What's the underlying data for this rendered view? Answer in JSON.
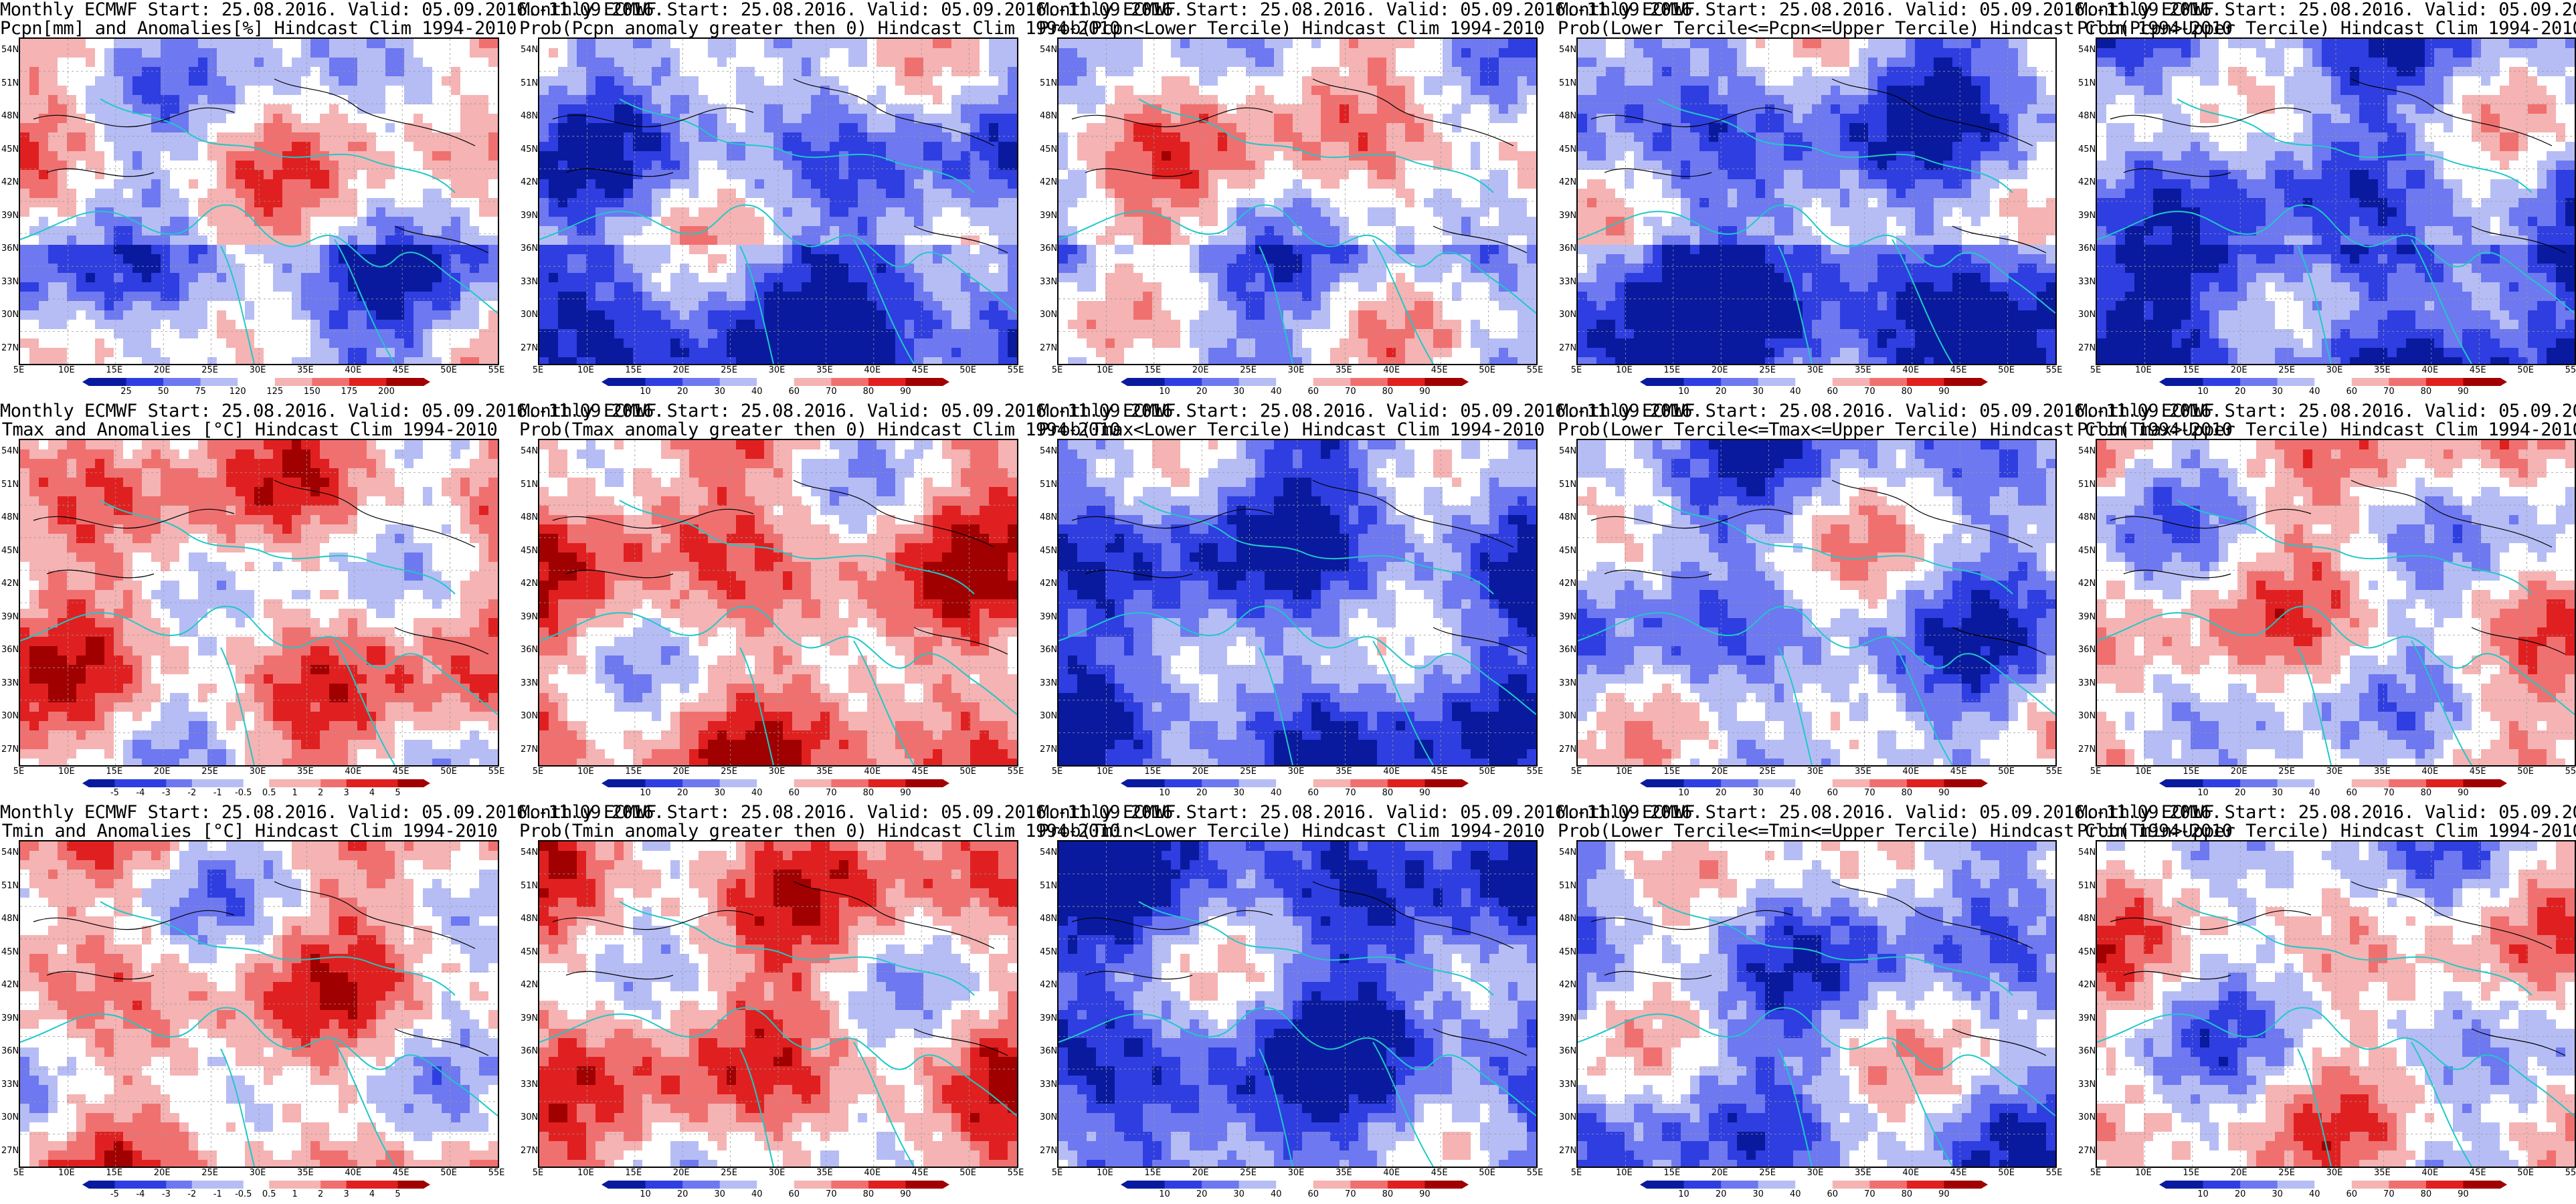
{
  "common": {
    "line1": "Monthly ECMWF Start: 25.08.2016. Valid: 05.09.2016.-11.09.2016.",
    "lat_labels": [
      "54N",
      "51N",
      "48N",
      "45N",
      "42N",
      "39N",
      "36N",
      "33N",
      "30N",
      "27N"
    ],
    "lon_labels": [
      "5E",
      "10E",
      "15E",
      "20E",
      "25E",
      "30E",
      "35E",
      "40E",
      "45E",
      "50E",
      "55E"
    ],
    "prob_ticks": [
      "10",
      "20",
      "30",
      "40",
      "60",
      "70",
      "80",
      "90"
    ],
    "colors": {
      "deep_blue": "#0a1a9e",
      "blue": "#2f3ee0",
      "mid_blue": "#6e78f0",
      "light_blue": "#b6bdf5",
      "white": "#ffffff",
      "light_red": "#f5b3b3",
      "mid_red": "#f07070",
      "red": "#e02020",
      "deep_red": "#a00000",
      "coast": "#20c8c8",
      "contour": "#000000"
    }
  },
  "rows": [
    {
      "variable": "precipitation",
      "panels": [
        {
          "title2": "Pcpn[mm] and Anomalies[%] Hindcast Clim 1994-2010",
          "ticks": [
            "25",
            "50",
            "75",
            "120",
            "125",
            "150",
            "175",
            "200"
          ],
          "bias": 0.0
        },
        {
          "title2": "Prob(Pcpn anomaly greater then 0) Hindcast Clim 1994-2010",
          "ticks": [
            "10",
            "20",
            "30",
            "40",
            "60",
            "70",
            "80",
            "90"
          ],
          "bias": -0.35
        },
        {
          "title2": "Prob(Pcpn<Lower Tercile) Hindcast Clim 1994-2010",
          "ticks": [
            "10",
            "20",
            "30",
            "40",
            "60",
            "70",
            "80",
            "90"
          ],
          "bias": 0.1
        },
        {
          "title2": "Prob(Lower Tercile<=Pcpn<=Upper Tercile) Hindcast Clim 1994-2010",
          "ticks": [
            "10",
            "20",
            "30",
            "40",
            "60",
            "70",
            "80",
            "90"
          ],
          "bias": -0.45
        },
        {
          "title2": "Prob(Pcpn>Upper Tercile) Hindcast Clim 1994-2010",
          "ticks": [
            "10",
            "20",
            "30",
            "40",
            "60",
            "70",
            "80",
            "90"
          ],
          "bias": -0.4
        }
      ]
    },
    {
      "variable": "tmax",
      "panels": [
        {
          "title2": "Tmax and Anomalies [°C] Hindcast Clim 1994-2010",
          "ticks": [
            "-5",
            "-4",
            "-3",
            "-2",
            "-1",
            "-0.5",
            "0.5",
            "1",
            "2",
            "3",
            "4",
            "5"
          ],
          "bias": 0.25
        },
        {
          "title2": "Prob(Tmax anomaly greater then 0) Hindcast Clim 1994-2010",
          "ticks": [
            "10",
            "20",
            "30",
            "40",
            "60",
            "70",
            "80",
            "90"
          ],
          "bias": 0.35
        },
        {
          "title2": "Prob(Tmax<Lower Tercile) Hindcast Clim 1994-2010",
          "ticks": [
            "10",
            "20",
            "30",
            "40",
            "60",
            "70",
            "80",
            "90"
          ],
          "bias": -0.55
        },
        {
          "title2": "Prob(Lower Tercile<=Tmax<=Upper Tercile) Hindcast Clim 1994-2010",
          "ticks": [
            "10",
            "20",
            "30",
            "40",
            "60",
            "70",
            "80",
            "90"
          ],
          "bias": -0.3
        },
        {
          "title2": "Prob(Tmax>Upper Tercile) Hindcast Clim 1994-2010",
          "ticks": [
            "10",
            "20",
            "30",
            "40",
            "60",
            "70",
            "80",
            "90"
          ],
          "bias": 0.05
        }
      ]
    },
    {
      "variable": "tmin",
      "panels": [
        {
          "title2": "Tmin and Anomalies [°C] Hindcast Clim 1994-2010",
          "ticks": [
            "-5",
            "-4",
            "-3",
            "-2",
            "-1",
            "-0.5",
            "0.5",
            "1",
            "2",
            "3",
            "4",
            "5"
          ],
          "bias": 0.2
        },
        {
          "title2": "Prob(Tmin anomaly greater then 0) Hindcast Clim 1994-2010",
          "ticks": [
            "10",
            "20",
            "30",
            "40",
            "60",
            "70",
            "80",
            "90"
          ],
          "bias": 0.3
        },
        {
          "title2": "Prob(Tmin<Lower Tercile) Hindcast Clim 1994-2010",
          "ticks": [
            "10",
            "20",
            "30",
            "40",
            "60",
            "70",
            "80",
            "90"
          ],
          "bias": -0.6
        },
        {
          "title2": "Prob(Lower Tercile<=Tmin<=Upper Tercile) Hindcast Clim 1994-2010",
          "ticks": [
            "10",
            "20",
            "30",
            "40",
            "60",
            "70",
            "80",
            "90"
          ],
          "bias": -0.3
        },
        {
          "title2": "Prob(Tmin>Upper Tercile) Hindcast Clim 1994-2010",
          "ticks": [
            "10",
            "20",
            "30",
            "40",
            "60",
            "70",
            "80",
            "90"
          ],
          "bias": 0.0
        }
      ]
    }
  ]
}
